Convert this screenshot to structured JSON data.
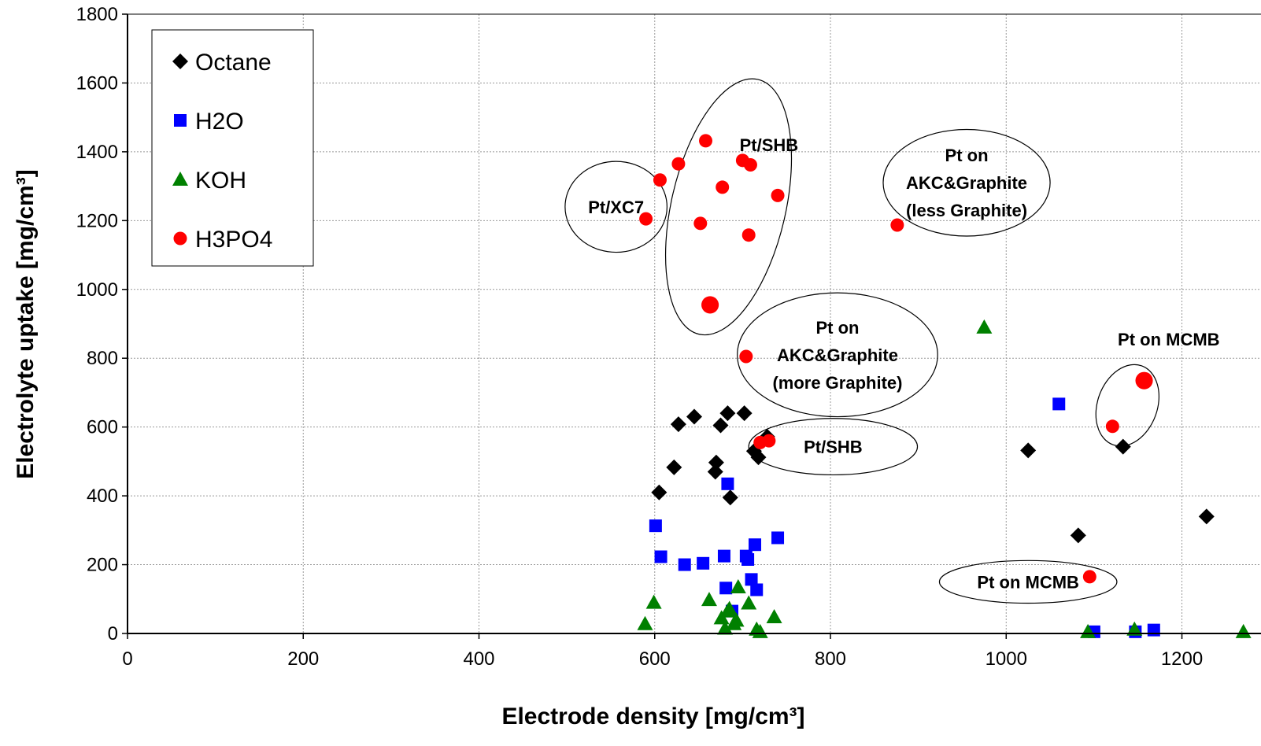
{
  "chart_data": {
    "type": "scatter",
    "xlabel": "Electrode density [mg/cm³]",
    "ylabel": "Electrolyte uptake [mg/cm³]",
    "xlim": [
      0,
      1290
    ],
    "ylim": [
      0,
      1800
    ],
    "xticks": [
      0,
      200,
      400,
      600,
      800,
      1000,
      1200
    ],
    "yticks": [
      0,
      200,
      400,
      600,
      800,
      1000,
      1200,
      1400,
      1600,
      1800
    ],
    "grid": true,
    "legend_position": "top-left",
    "series": [
      {
        "name": "Octane",
        "marker": "diamond",
        "color": "#000000",
        "points": [
          [
            605,
            410
          ],
          [
            622,
            483
          ],
          [
            627,
            608
          ],
          [
            645,
            630
          ],
          [
            669,
            470
          ],
          [
            670,
            497
          ],
          [
            675,
            605
          ],
          [
            683,
            640
          ],
          [
            686,
            395
          ],
          [
            702,
            640
          ],
          [
            713,
            530
          ],
          [
            718,
            512
          ],
          [
            728,
            572
          ],
          [
            1025,
            532
          ],
          [
            1082,
            285
          ],
          [
            1133,
            543
          ],
          [
            1228,
            340
          ]
        ]
      },
      {
        "name": "H2O",
        "marker": "square",
        "color": "#0000ff",
        "points": [
          [
            601,
            313
          ],
          [
            607,
            223
          ],
          [
            634,
            200
          ],
          [
            655,
            204
          ],
          [
            679,
            225
          ],
          [
            681,
            132
          ],
          [
            683,
            435
          ],
          [
            688,
            65
          ],
          [
            704,
            225
          ],
          [
            706,
            215
          ],
          [
            710,
            157
          ],
          [
            714,
            258
          ],
          [
            716,
            127
          ],
          [
            740,
            278
          ],
          [
            1060,
            667
          ],
          [
            1100,
            5
          ],
          [
            1147,
            5
          ],
          [
            1168,
            10
          ]
        ]
      },
      {
        "name": "KOH",
        "marker": "triangle",
        "color": "#008000",
        "points": [
          [
            589,
            28
          ],
          [
            599,
            90
          ],
          [
            662,
            98
          ],
          [
            676,
            45
          ],
          [
            680,
            15
          ],
          [
            683,
            65
          ],
          [
            685,
            72
          ],
          [
            690,
            28
          ],
          [
            693,
            38
          ],
          [
            695,
            135
          ],
          [
            707,
            88
          ],
          [
            716,
            12
          ],
          [
            720,
            5
          ],
          [
            736,
            48
          ],
          [
            975,
            890
          ],
          [
            1093,
            5
          ],
          [
            1146,
            12
          ],
          [
            1270,
            5
          ]
        ]
      },
      {
        "name": "H3PO4",
        "marker": "circle",
        "color": "#ff0000",
        "points": [
          [
            590,
            1205
          ],
          [
            606,
            1318
          ],
          [
            627,
            1365
          ],
          [
            652,
            1192
          ],
          [
            658,
            1432
          ],
          [
            677,
            1297
          ],
          [
            700,
            1375
          ],
          [
            704,
            805
          ],
          [
            707,
            1158
          ],
          [
            709,
            1362
          ],
          [
            720,
            555
          ],
          [
            730,
            560
          ],
          [
            740,
            1273
          ],
          [
            876,
            1187
          ],
          [
            1095,
            165
          ],
          [
            1121,
            602
          ]
        ],
        "large_points": [
          [
            663,
            955
          ],
          [
            1157,
            735
          ]
        ]
      }
    ],
    "annotations": [
      {
        "text": [
          "Pt/XC7"
        ],
        "cx": 556,
        "cy": 1240,
        "rx": 58,
        "ry": 132
      },
      {
        "text": [
          "Pt/SHB"
        ],
        "cx": 684,
        "cy": 1240,
        "rx": 65,
        "ry": 380,
        "angle": 13,
        "text_x": 730,
        "text_y": 1420
      },
      {
        "text": [
          "Pt on",
          "AKC&Graphite",
          "(less Graphite)"
        ],
        "cx": 955,
        "cy": 1310,
        "rx": 95,
        "ry": 155
      },
      {
        "text": [
          "Pt on",
          "AKC&Graphite",
          "(more Graphite)"
        ],
        "cx": 808,
        "cy": 810,
        "rx": 114,
        "ry": 180
      },
      {
        "text": [
          "Pt/SHB"
        ],
        "cx": 803,
        "cy": 543,
        "rx": 96,
        "ry": 82
      },
      {
        "text": [
          "Pt on MCMB"
        ],
        "cx": 1138,
        "cy": 663,
        "rx": 34,
        "ry": 122,
        "angle": 20,
        "text_x": 1185,
        "text_y": 855
      },
      {
        "text": [
          "Pt on MCMB"
        ],
        "cx": 1025,
        "cy": 150,
        "rx": 101,
        "ry": 62
      }
    ]
  }
}
